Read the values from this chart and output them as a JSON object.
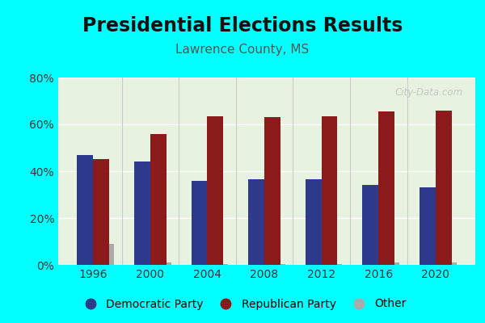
{
  "title": "Presidential Elections Results",
  "subtitle": "Lawrence County, MS",
  "years": [
    1996,
    2000,
    2004,
    2008,
    2012,
    2016,
    2020
  ],
  "democratic": [
    47,
    44,
    36,
    36.5,
    36.5,
    34,
    33
  ],
  "republican": [
    45,
    56,
    63.5,
    63,
    63.5,
    65.5,
    66
  ],
  "other": [
    9,
    1,
    0.5,
    0.5,
    0.5,
    1,
    1
  ],
  "dem_color": "#2E3A8C",
  "rep_color": "#8B1A1A",
  "other_color": "#AAAAAA",
  "bg_color": "#E8F2E0",
  "outer_bg": "#00FFFF",
  "ylim": [
    0,
    80
  ],
  "yticks": [
    0,
    20,
    40,
    60,
    80
  ],
  "ytick_labels": [
    "0%",
    "20%",
    "40%",
    "60%",
    "80%"
  ],
  "bar_width": 0.28,
  "title_fontsize": 17,
  "subtitle_fontsize": 11,
  "watermark": "City-Data.com"
}
